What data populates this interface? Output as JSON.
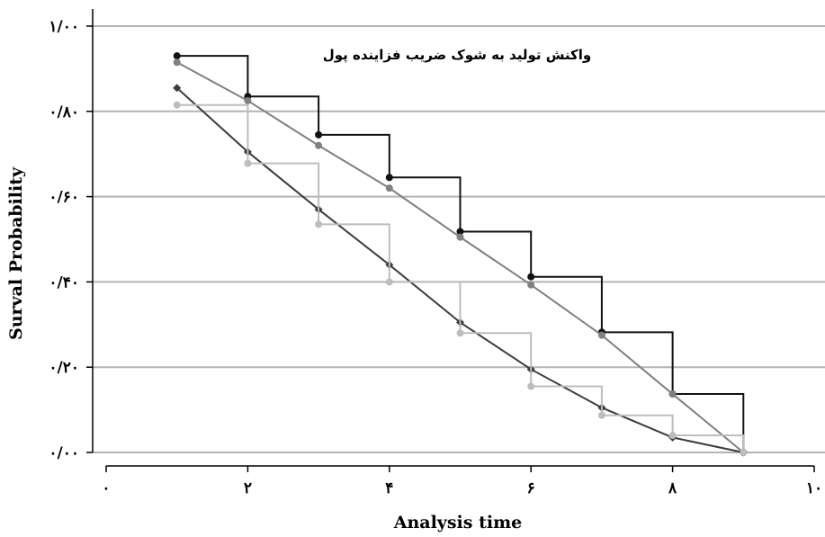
{
  "chart_data": {
    "type": "line",
    "title": "",
    "annotation": "واکنش تولید به شوک ضریب فزاینده پول",
    "xlabel": "Analysis time",
    "ylabel": "Surval Probability",
    "xlim": [
      0,
      10
    ],
    "ylim": [
      0,
      1
    ],
    "x_ticks": [
      0,
      2,
      4,
      6,
      8,
      10
    ],
    "x_tick_labels": [
      "۰",
      "۲",
      "۴",
      "۶",
      "۸",
      "۱۰"
    ],
    "y_ticks": [
      0,
      0.2,
      0.4,
      0.6,
      0.8,
      1.0
    ],
    "y_tick_labels": [
      "۰/۰۰",
      "۰/۲۰",
      "۰/۴۰",
      "۰/۶۰",
      "۰/۸۰",
      "۱/۰۰"
    ],
    "grid": true,
    "series": [
      {
        "style": "step",
        "color": "#111111",
        "x": [
          1,
          2,
          3,
          4,
          5,
          6,
          7,
          8,
          9
        ],
        "values": [
          0.93,
          0.835,
          0.745,
          0.645,
          0.518,
          0.412,
          0.282,
          0.137,
          0.0
        ]
      },
      {
        "style": "line",
        "color": "#808080",
        "x": [
          1,
          2,
          3,
          4,
          5,
          6,
          7,
          8,
          9
        ],
        "values": [
          0.915,
          0.825,
          0.72,
          0.62,
          0.505,
          0.393,
          0.275,
          0.137,
          0.0
        ]
      },
      {
        "style": "line",
        "color": "#3c3c3c",
        "marker": "diamond",
        "x": [
          1,
          2,
          3,
          4,
          5,
          6,
          7,
          8,
          9
        ],
        "values": [
          0.855,
          0.705,
          0.57,
          0.44,
          0.305,
          0.195,
          0.105,
          0.035,
          0.0
        ]
      },
      {
        "style": "step",
        "color": "#bdbdbd",
        "x": [
          1,
          2,
          3,
          4,
          5,
          6,
          7,
          8,
          9
        ],
        "values": [
          0.815,
          0.678,
          0.535,
          0.4,
          0.28,
          0.155,
          0.087,
          0.04,
          0.0
        ]
      }
    ]
  }
}
